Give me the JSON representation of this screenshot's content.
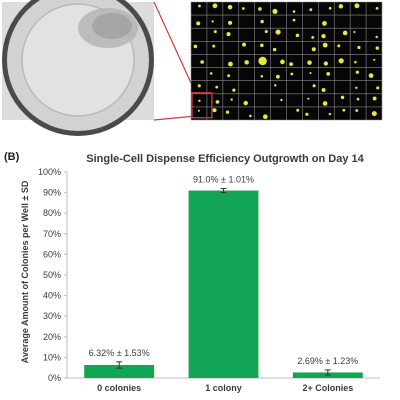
{
  "panel_label": "(B)",
  "colors": {
    "bar": "#13a556",
    "well_bg": "#cfcfcf",
    "grid_bg": "#060606",
    "grid_line": "#8a8a8a",
    "colony": "#e7e73c",
    "highlight": "#d23b3b"
  },
  "chart_data": {
    "type": "bar",
    "title": "Single-Cell Dispense Efficiency Outgrowth on Day 14",
    "ylabel": "Average Amount of Colonies per Well ± SD",
    "categories": [
      "0 colonies",
      "1 colony",
      "2+ Colonies"
    ],
    "values": [
      6.32,
      91.0,
      2.69
    ],
    "errors": [
      1.53,
      1.01,
      1.23
    ],
    "data_labels": [
      "6.32% ± 1.53%",
      "91.0% ± 1.01%",
      "2.69% ± 1.23%"
    ],
    "ylim": [
      0,
      100
    ],
    "yticks": [
      0,
      10,
      20,
      30,
      40,
      50,
      60,
      70,
      80,
      90,
      100
    ],
    "ytick_suffix": "%",
    "grid": false,
    "legend": "none"
  }
}
